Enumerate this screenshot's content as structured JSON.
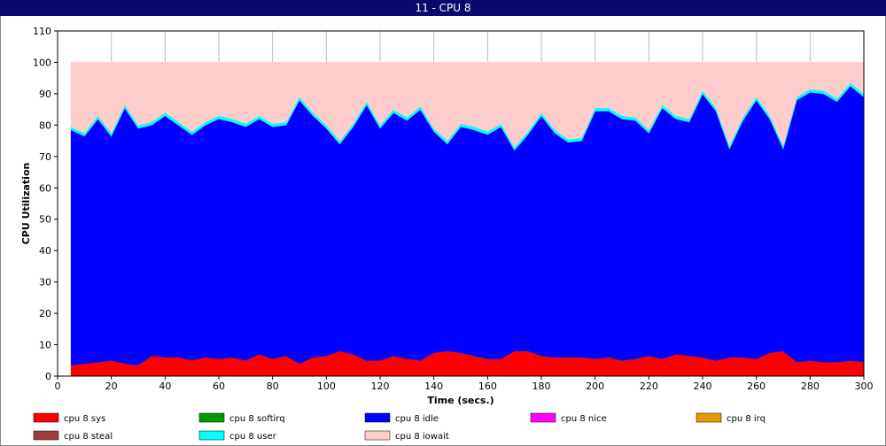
{
  "chart_data": {
    "type": "stacked_area",
    "title": "11 - CPU 8",
    "xlabel": "Time (secs.)",
    "ylabel": "CPU Utilization",
    "xlim": [
      0,
      300
    ],
    "xticks": [
      0,
      20,
      40,
      60,
      80,
      100,
      120,
      140,
      160,
      180,
      200,
      220,
      240,
      260,
      280,
      300
    ],
    "ylim": [
      0,
      110
    ],
    "yticks": [
      0,
      10,
      20,
      30,
      40,
      50,
      60,
      70,
      80,
      90,
      100,
      110
    ],
    "grid": true,
    "x": [
      5,
      10,
      15,
      20,
      25,
      30,
      35,
      40,
      45,
      50,
      55,
      60,
      65,
      70,
      75,
      80,
      85,
      90,
      95,
      100,
      105,
      110,
      115,
      120,
      125,
      130,
      135,
      140,
      145,
      150,
      155,
      160,
      165,
      170,
      175,
      180,
      185,
      190,
      195,
      200,
      205,
      210,
      215,
      220,
      225,
      230,
      235,
      240,
      245,
      250,
      255,
      260,
      265,
      270,
      275,
      280,
      285,
      290,
      295,
      300
    ],
    "series": [
      {
        "name": "cpu 8 sys",
        "color": "#ff0000",
        "values": [
          3.5,
          4,
          4.5,
          5,
          4,
          3.5,
          6.5,
          6,
          6,
          5,
          6,
          5.5,
          6,
          5,
          7,
          5.5,
          6.5,
          4,
          6,
          6.5,
          8,
          7,
          5,
          5,
          6.5,
          5.5,
          5,
          7.5,
          8,
          7.5,
          6.5,
          5.5,
          5.5,
          8,
          8,
          6.5,
          6,
          6,
          6,
          5.5,
          6,
          5,
          5.5,
          6.5,
          5.5,
          7,
          6.5,
          6,
          5,
          6,
          6,
          5.5,
          7.5,
          8,
          4.5,
          5,
          4.5,
          4.5,
          5,
          4.5
        ]
      },
      {
        "name": "cpu 8 softirq",
        "color": "#009900",
        "values": [
          0,
          0,
          0,
          0,
          0,
          0,
          0,
          0,
          0,
          0,
          0,
          0,
          0,
          0,
          0,
          0,
          0,
          0,
          0,
          0,
          0,
          0,
          0,
          0,
          0,
          0,
          0,
          0,
          0,
          0,
          0,
          0,
          0,
          0,
          0,
          0,
          0,
          0,
          0,
          0,
          0,
          0,
          0,
          0,
          0,
          0,
          0,
          0,
          0,
          0,
          0,
          0,
          0,
          0,
          0,
          0,
          0,
          0,
          0,
          0
        ]
      },
      {
        "name": "cpu 8 idle",
        "color": "#0000ff",
        "values": [
          75,
          72.5,
          77.5,
          71.5,
          81.5,
          75.5,
          73.5,
          77,
          74,
          72,
          74,
          76.5,
          75,
          74.5,
          75,
          74,
          73.5,
          84,
          77,
          72.5,
          66,
          72.5,
          81.5,
          74,
          77.5,
          76,
          80,
          70.5,
          66,
          72,
          72,
          71.5,
          74,
          64,
          69,
          76.5,
          71.5,
          68.5,
          69,
          79,
          78.5,
          77,
          76,
          71,
          80,
          75,
          74.5,
          84,
          79.5,
          66.5,
          75.5,
          82.5,
          74.5,
          64.5,
          83.5,
          85.5,
          85.5,
          83,
          87.5,
          84.5
        ]
      },
      {
        "name": "cpu 8 nice",
        "color": "#ff00ff",
        "values": [
          0,
          0,
          0,
          0,
          0,
          0,
          0,
          0,
          0,
          0,
          0,
          0,
          0,
          0,
          0,
          0,
          0,
          0,
          0,
          0,
          0,
          0,
          0,
          0,
          0,
          0,
          0,
          0,
          0,
          0,
          0,
          0,
          0,
          0,
          0,
          0,
          0,
          0,
          0,
          0,
          0,
          0,
          0,
          0,
          0,
          0,
          0,
          0,
          0,
          0,
          0,
          0,
          0,
          0,
          0,
          0,
          0,
          0,
          0,
          0
        ]
      },
      {
        "name": "cpu 8 irq",
        "color": "#e69900",
        "values": [
          0,
          0,
          0,
          0,
          0,
          0,
          0,
          0,
          0,
          0,
          0,
          0,
          0,
          0,
          0,
          0,
          0,
          0,
          0,
          0,
          0,
          0,
          0,
          0,
          0,
          0,
          0,
          0,
          0,
          0,
          0,
          0,
          0,
          0,
          0,
          0,
          0,
          0,
          0,
          0,
          0,
          0,
          0,
          0,
          0,
          0,
          0,
          0,
          0,
          0,
          0,
          0,
          0,
          0,
          0,
          0,
          0,
          0,
          0,
          0
        ]
      },
      {
        "name": "cpu 8 steal",
        "color": "#a03c3c",
        "values": [
          0,
          0,
          0,
          0,
          0,
          0,
          0,
          0,
          0,
          0,
          0,
          0,
          0,
          0,
          0,
          0,
          0,
          0,
          0,
          0,
          0,
          0,
          0,
          0,
          0,
          0,
          0,
          0,
          0,
          0,
          0,
          0,
          0,
          0,
          0,
          0,
          0,
          0,
          0,
          0,
          0,
          0,
          0,
          0,
          0,
          0,
          0,
          0,
          0,
          0,
          0,
          0,
          0,
          0,
          0,
          0,
          0,
          0,
          0,
          0
        ]
      },
      {
        "name": "cpu 8 user",
        "color": "#00ffff",
        "values": [
          1,
          1,
          1,
          1,
          1,
          1,
          1,
          1,
          1,
          1,
          1,
          1,
          1,
          1,
          1,
          1,
          1,
          1,
          1,
          1,
          1,
          1,
          1,
          1,
          1,
          1,
          1,
          1,
          1,
          1,
          1,
          1,
          1,
          1,
          1,
          1,
          1,
          1,
          1,
          1,
          1,
          1,
          1,
          1,
          1,
          1,
          1,
          1,
          1,
          1,
          1,
          1,
          1,
          1,
          1,
          1,
          1,
          1,
          1,
          1
        ]
      },
      {
        "name": "cpu 8 iowait",
        "color": "#ffcccc",
        "values": [
          20.5,
          22.5,
          17,
          22.5,
          13.5,
          20,
          19,
          16,
          19,
          22,
          19,
          17,
          18,
          19.5,
          17,
          19.5,
          19,
          11,
          16,
          20,
          25,
          19.5,
          12.5,
          20,
          15,
          17.5,
          14,
          21,
          25,
          19.5,
          20.5,
          22,
          19.5,
          27,
          22,
          16,
          21.5,
          24.5,
          24,
          14.5,
          14.5,
          17,
          17.5,
          21.5,
          13.5,
          17,
          18,
          9,
          14.5,
          26.5,
          17.5,
          11,
          17,
          26.5,
          11,
          8.5,
          9,
          11.5,
          6.5,
          10
        ]
      }
    ]
  }
}
